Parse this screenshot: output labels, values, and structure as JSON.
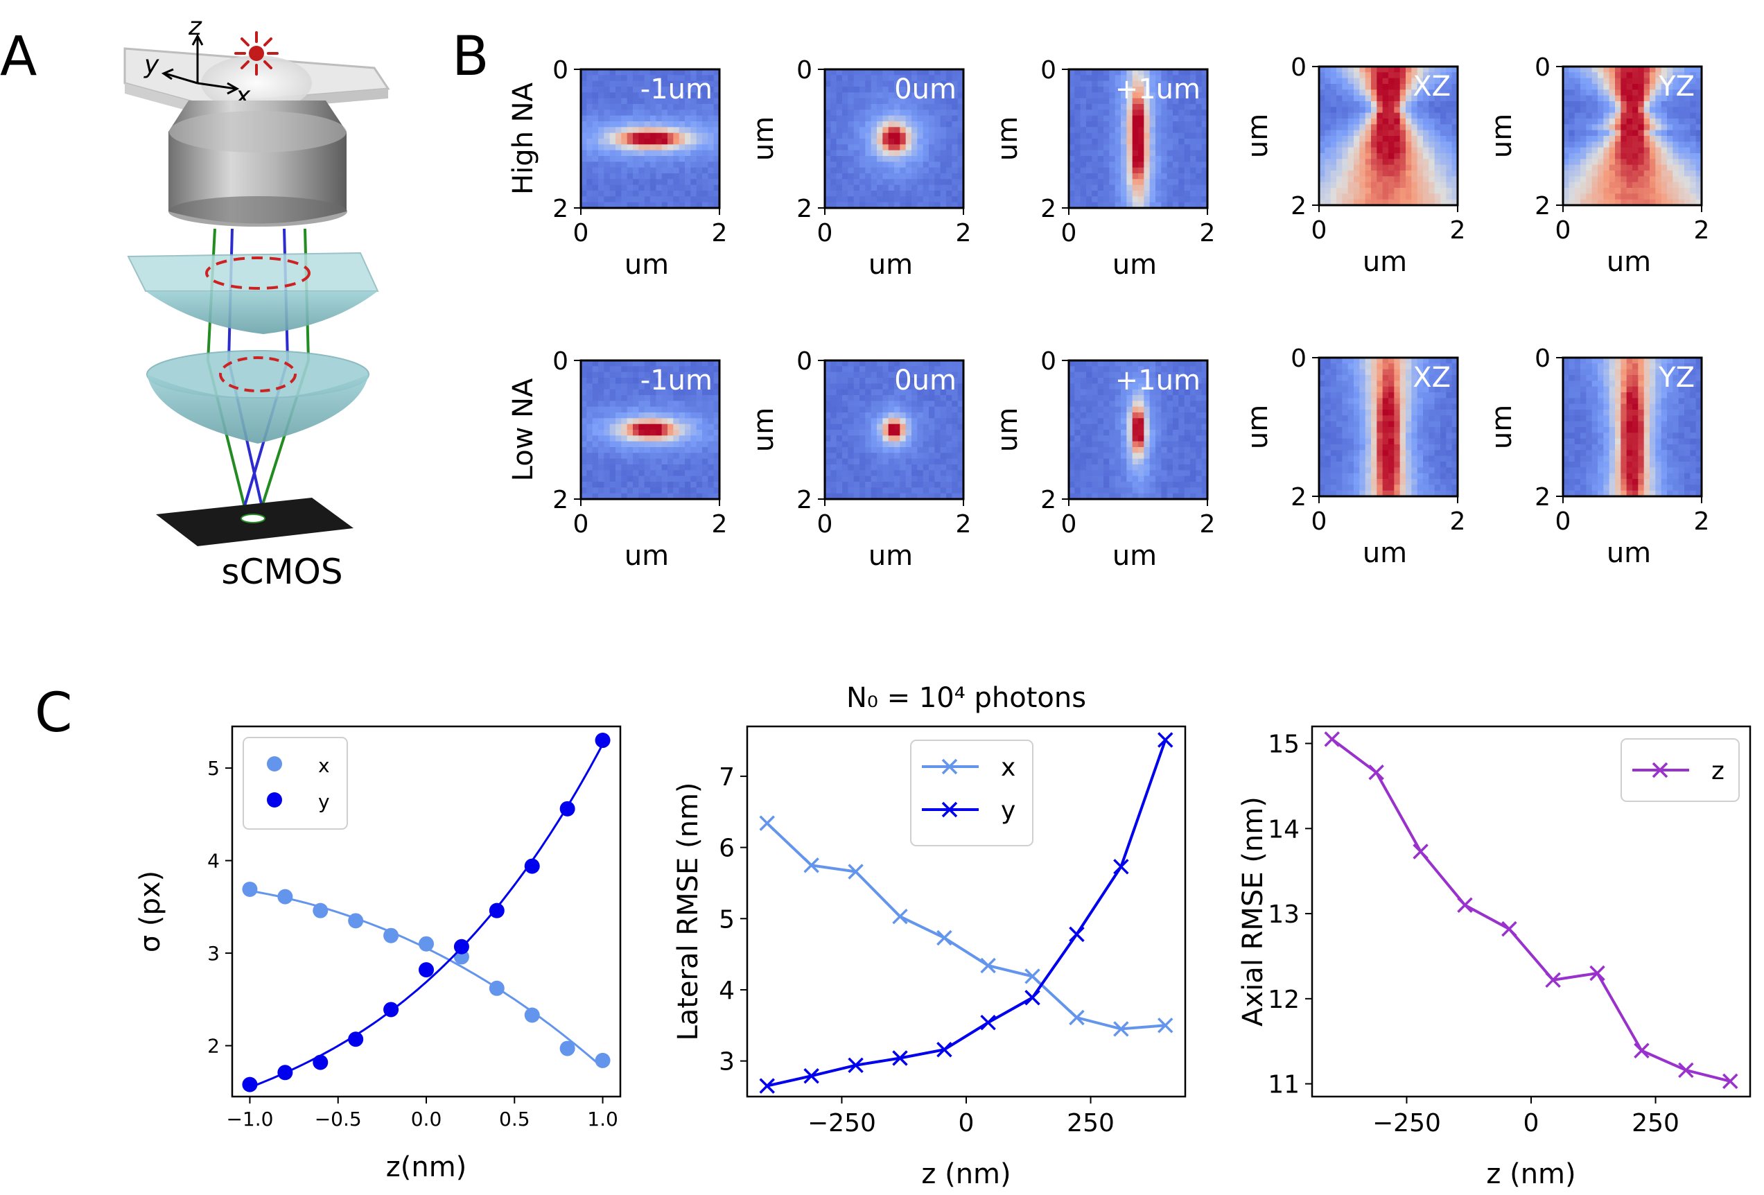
{
  "panels": {
    "a": {
      "letter": "A",
      "camera_label": "sCMOS",
      "axis_x": "x",
      "axis_y": "y",
      "axis_z": "z"
    },
    "b": {
      "letter": "B"
    },
    "c": {
      "letter": "C"
    }
  },
  "psf": {
    "row_labels": [
      "High NA",
      "Low NA"
    ],
    "columns": [
      {
        "label": "-1um",
        "type": "xy",
        "ux": 1.0,
        "uy": 1.0,
        "sx": 0.33,
        "sy": 0.09
      },
      {
        "label": "0um",
        "type": "xy",
        "ux": 1.0,
        "uy": 1.0,
        "sx": 0.14,
        "sy": 0.14
      },
      {
        "label": "+1um",
        "type": "xy",
        "ux": 1.0,
        "uy": 1.0,
        "sx": 0.09,
        "sy": 0.55
      },
      {
        "label": "XZ",
        "type": "side"
      },
      {
        "label": "YZ",
        "type": "side"
      }
    ],
    "axis_label": "um",
    "ticks": [
      "0",
      "2"
    ],
    "colormap": "coolwarm"
  },
  "chart_data": [
    {
      "type": "scatter",
      "title": "",
      "xlabel": "z(nm)",
      "ylabel": "σ (px)",
      "xlim": [
        -1.1,
        1.1
      ],
      "ylim": [
        1.45,
        5.45
      ],
      "xticks": [
        "−1.0",
        "−0.5",
        "0.0",
        "0.5",
        "1.0"
      ],
      "yticks": [
        "2",
        "3",
        "4",
        "5"
      ],
      "legend_position": "upper-left",
      "fit_lines": true,
      "series": [
        {
          "name": "x",
          "color": "#6495ed",
          "x": [
            -1.0,
            -0.8,
            -0.6,
            -0.4,
            -0.2,
            0.0,
            0.2,
            0.4,
            0.6,
            0.8,
            1.0
          ],
          "y": [
            3.69,
            3.61,
            3.46,
            3.35,
            3.19,
            3.1,
            2.96,
            2.62,
            2.33,
            1.97,
            1.84
          ]
        },
        {
          "name": "y",
          "color": "#0000ee",
          "x": [
            -1.0,
            -0.8,
            -0.6,
            -0.4,
            -0.2,
            0.0,
            0.2,
            0.4,
            0.6,
            0.8,
            1.0
          ],
          "y": [
            1.58,
            1.71,
            1.82,
            2.07,
            2.39,
            2.82,
            3.07,
            3.46,
            3.94,
            4.56,
            5.3
          ]
        }
      ]
    },
    {
      "type": "line",
      "title": "N₀ = 10⁴ photons",
      "xlabel": "z (nm)",
      "ylabel": "Lateral RMSE (nm)",
      "xlim": [
        -440,
        440
      ],
      "ylim": [
        2.5,
        7.7
      ],
      "xticks": [
        "−250",
        "0",
        "250"
      ],
      "yticks": [
        "3",
        "4",
        "5",
        "6",
        "7"
      ],
      "legend_position": "upper-center",
      "series": [
        {
          "name": "x",
          "color": "#6495ed",
          "x": [
            -400,
            -311,
            -222,
            -133,
            -44,
            44,
            133,
            222,
            311,
            400
          ],
          "y": [
            6.34,
            5.75,
            5.66,
            5.03,
            4.73,
            4.34,
            4.19,
            3.61,
            3.45,
            3.5
          ]
        },
        {
          "name": "y",
          "color": "#0000ee",
          "x": [
            -400,
            -311,
            -222,
            -133,
            -44,
            44,
            133,
            222,
            311,
            400
          ],
          "y": [
            2.65,
            2.79,
            2.94,
            3.04,
            3.16,
            3.54,
            3.89,
            4.78,
            5.73,
            7.51
          ]
        }
      ]
    },
    {
      "type": "line",
      "title": "",
      "xlabel": "z (nm)",
      "ylabel": "Axial RMSE (nm)",
      "xlim": [
        -440,
        440
      ],
      "ylim": [
        10.85,
        15.2
      ],
      "xticks": [
        "−250",
        "0",
        "250"
      ],
      "yticks": [
        "11",
        "12",
        "13",
        "14",
        "15"
      ],
      "legend_position": "upper-right",
      "series": [
        {
          "name": "z",
          "color": "#9932cc",
          "x": [
            -400,
            -311,
            -222,
            -133,
            -44,
            44,
            133,
            222,
            311,
            400
          ],
          "y": [
            15.05,
            14.66,
            13.73,
            13.1,
            12.82,
            12.22,
            12.3,
            11.39,
            11.16,
            11.03
          ]
        }
      ]
    }
  ]
}
